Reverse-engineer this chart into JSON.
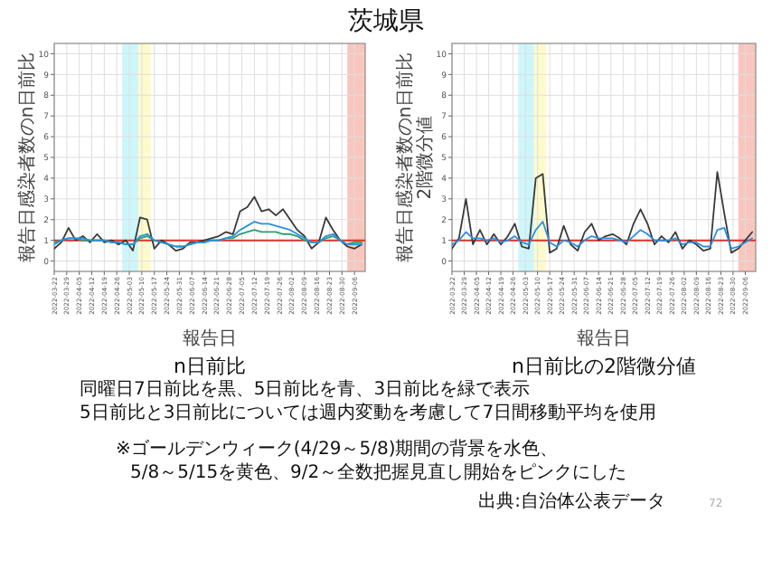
{
  "chart_data": [
    {
      "type": "other",
      "title": "茨城県",
      "annotations": [
        "同曜日7日前比を黒、5日前比を青、3日前比を緑で表示",
        "5日前比と3日前比については週内変動を考慮して7日間移動平均を使用",
        "※ゴールデンウィーク(4/29～5/8)期間の背景を水色、",
        "5/8～5/15を黄色、9/2～全数把握見直し開始をピンクにした",
        "出典:自治体公表データ",
        "72"
      ]
    },
    {
      "type": "line",
      "title": "n日前比",
      "xlabel": "報告日",
      "ylabel": "報告日感染者数のn日前比",
      "grid": true,
      "x": [
        "2022-03-22",
        "2022-03-26",
        "2022-03-30",
        "2022-04-03",
        "2022-04-07",
        "2022-04-11",
        "2022-04-15",
        "2022-04-19",
        "2022-04-23",
        "2022-04-27",
        "2022-05-01",
        "2022-05-05",
        "2022-05-09",
        "2022-05-13",
        "2022-05-17",
        "2022-05-21",
        "2022-05-25",
        "2022-05-29",
        "2022-06-02",
        "2022-06-06",
        "2022-06-10",
        "2022-06-14",
        "2022-06-18",
        "2022-06-22",
        "2022-06-26",
        "2022-06-30",
        "2022-07-04",
        "2022-07-08",
        "2022-07-12",
        "2022-07-16",
        "2022-07-20",
        "2022-07-24",
        "2022-07-28",
        "2022-08-01",
        "2022-08-05",
        "2022-08-09",
        "2022-08-13",
        "2022-08-17",
        "2022-08-21",
        "2022-08-25",
        "2022-08-29",
        "2022-09-02",
        "2022-09-06",
        "2022-09-10"
      ],
      "xlim": [
        "2022-03-22",
        "2022-09-12"
      ],
      "xticks": [
        "2022-03-22",
        "2022-03-29",
        "2022-04-05",
        "2022-04-12",
        "2022-04-19",
        "2022-04-26",
        "2022-05-03",
        "2022-05-10",
        "2022-05-17",
        "2022-05-24",
        "2022-05-31",
        "2022-06-07",
        "2022-06-14",
        "2022-06-21",
        "2022-06-28",
        "2022-07-05",
        "2022-07-12",
        "2022-07-19",
        "2022-07-26",
        "2022-08-02",
        "2022-08-09",
        "2022-08-16",
        "2022-08-23",
        "2022-08-30",
        "2022-09-06"
      ],
      "ylim": [
        -0.5,
        10.5
      ],
      "yticks": [
        0,
        1,
        2,
        3,
        4,
        5,
        6,
        7,
        8,
        9,
        10
      ],
      "bands": [
        {
          "axis": "x",
          "from": "2022-04-29",
          "to": "2022-05-08",
          "color": "#cdf6fb"
        },
        {
          "axis": "x",
          "from": "2022-05-08",
          "to": "2022-05-15",
          "color": "#fdfbcc"
        },
        {
          "axis": "x",
          "from": "2022-09-02",
          "to": "2022-09-12",
          "color": "#f8c6bd"
        }
      ],
      "ref_lines": [
        {
          "axis": "y",
          "value": 1,
          "color": "#e0302a"
        }
      ],
      "series": [
        {
          "color": "#3a3a3a",
          "values": [
            0.6,
            0.9,
            1.6,
            1.0,
            1.2,
            0.9,
            1.3,
            0.9,
            1.0,
            0.8,
            1.0,
            0.5,
            2.1,
            2.0,
            0.6,
            1.0,
            0.8,
            0.5,
            0.6,
            0.9,
            0.9,
            1.0,
            1.1,
            1.2,
            1.4,
            1.3,
            2.4,
            2.6,
            3.1,
            2.4,
            2.5,
            2.2,
            2.5,
            2.0,
            1.5,
            1.2,
            0.6,
            0.9,
            2.1,
            1.5,
            1.0,
            0.7,
            0.6,
            0.8
          ]
        },
        {
          "color": "#2e9e6e",
          "values": [
            0.9,
            1.0,
            1.1,
            1.1,
            1.0,
            1.0,
            1.0,
            1.0,
            0.9,
            0.9,
            0.8,
            0.8,
            1.1,
            1.2,
            1.0,
            0.9,
            0.8,
            0.7,
            0.7,
            0.8,
            0.9,
            0.9,
            1.0,
            1.0,
            1.1,
            1.1,
            1.3,
            1.4,
            1.5,
            1.4,
            1.4,
            1.4,
            1.3,
            1.3,
            1.2,
            1.0,
            0.9,
            0.9,
            1.1,
            1.2,
            1.0,
            0.8,
            0.9,
            0.9
          ]
        },
        {
          "color": "#2a90e0",
          "values": [
            0.8,
            1.0,
            1.1,
            1.1,
            1.1,
            1.0,
            1.0,
            1.0,
            0.9,
            0.9,
            0.8,
            0.8,
            1.2,
            1.3,
            1.0,
            0.9,
            0.8,
            0.7,
            0.7,
            0.8,
            0.9,
            0.9,
            1.0,
            1.0,
            1.1,
            1.2,
            1.5,
            1.7,
            1.9,
            1.8,
            1.8,
            1.7,
            1.6,
            1.5,
            1.3,
            1.1,
            0.9,
            0.9,
            1.2,
            1.3,
            1.0,
            0.8,
            0.8,
            0.8
          ]
        }
      ]
    },
    {
      "type": "line",
      "title": "n日前比の2階微分値",
      "xlabel": "報告日",
      "ylabel": "報告日感染者数のn日前比\n2階微分値",
      "grid": true,
      "x": [
        "2022-03-22",
        "2022-03-26",
        "2022-03-30",
        "2022-04-03",
        "2022-04-07",
        "2022-04-11",
        "2022-04-15",
        "2022-04-19",
        "2022-04-23",
        "2022-04-27",
        "2022-05-01",
        "2022-05-05",
        "2022-05-09",
        "2022-05-13",
        "2022-05-17",
        "2022-05-21",
        "2022-05-25",
        "2022-05-29",
        "2022-06-02",
        "2022-06-06",
        "2022-06-10",
        "2022-06-14",
        "2022-06-18",
        "2022-06-22",
        "2022-06-26",
        "2022-06-30",
        "2022-07-04",
        "2022-07-08",
        "2022-07-12",
        "2022-07-16",
        "2022-07-20",
        "2022-07-24",
        "2022-07-28",
        "2022-08-01",
        "2022-08-05",
        "2022-08-09",
        "2022-08-13",
        "2022-08-17",
        "2022-08-21",
        "2022-08-25",
        "2022-08-29",
        "2022-09-02",
        "2022-09-06",
        "2022-09-10"
      ],
      "xlim": [
        "2022-03-22",
        "2022-09-12"
      ],
      "xticks": [
        "2022-03-22",
        "2022-03-29",
        "2022-04-05",
        "2022-04-12",
        "2022-04-19",
        "2022-04-26",
        "2022-05-03",
        "2022-05-10",
        "2022-05-17",
        "2022-05-24",
        "2022-05-31",
        "2022-06-07",
        "2022-06-14",
        "2022-06-21",
        "2022-06-28",
        "2022-07-05",
        "2022-07-12",
        "2022-07-19",
        "2022-07-26",
        "2022-08-02",
        "2022-08-09",
        "2022-08-16",
        "2022-08-23",
        "2022-08-30",
        "2022-09-06"
      ],
      "ylim": [
        -0.5,
        10.5
      ],
      "yticks": [
        0,
        1,
        2,
        3,
        4,
        5,
        6,
        7,
        8,
        9,
        10
      ],
      "bands": [
        {
          "axis": "x",
          "from": "2022-04-29",
          "to": "2022-05-08",
          "color": "#cdf6fb"
        },
        {
          "axis": "x",
          "from": "2022-05-08",
          "to": "2022-05-15",
          "color": "#fdfbcc"
        },
        {
          "axis": "x",
          "from": "2022-09-02",
          "to": "2022-09-12",
          "color": "#f8c6bd"
        }
      ],
      "ref_lines": [
        {
          "axis": "y",
          "value": 1,
          "color": "#e0302a"
        }
      ],
      "series": [
        {
          "color": "#3a3a3a",
          "values": [
            0.6,
            1.1,
            3.0,
            0.8,
            1.5,
            0.8,
            1.3,
            0.8,
            1.2,
            1.8,
            0.7,
            0.6,
            4.0,
            4.2,
            0.4,
            0.6,
            1.7,
            0.8,
            0.5,
            1.4,
            1.8,
            1.0,
            1.2,
            1.3,
            1.1,
            0.8,
            1.8,
            2.5,
            1.8,
            0.8,
            1.2,
            0.9,
            1.4,
            0.6,
            1.0,
            0.8,
            0.5,
            0.6,
            4.3,
            2.3,
            0.4,
            0.6,
            1.0,
            1.4
          ]
        },
        {
          "color": "#2a90e0",
          "values": [
            0.8,
            1.0,
            1.4,
            1.1,
            1.1,
            1.0,
            1.1,
            0.9,
            1.0,
            1.2,
            0.9,
            0.8,
            1.5,
            1.9,
            0.9,
            0.7,
            1.0,
            0.9,
            0.7,
            1.0,
            1.2,
            1.1,
            1.1,
            1.1,
            1.0,
            0.9,
            1.2,
            1.5,
            1.3,
            1.0,
            1.0,
            1.0,
            1.1,
            0.8,
            0.9,
            0.9,
            0.7,
            0.7,
            1.5,
            1.6,
            0.6,
            0.7,
            0.9,
            1.1
          ]
        }
      ]
    }
  ]
}
